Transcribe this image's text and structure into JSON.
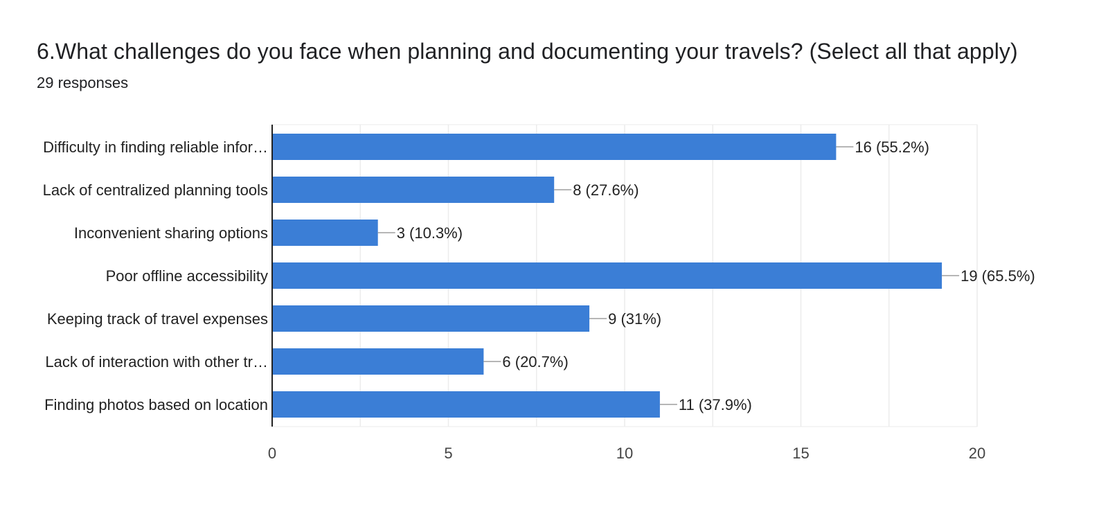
{
  "question": {
    "title": "6.What challenges do you face when planning and documenting your travels? (Select all that apply)",
    "responses": "29 responses"
  },
  "chart_data": {
    "type": "bar",
    "orientation": "horizontal",
    "categories": [
      "Difficulty in finding reliable infor…",
      "Lack of centralized planning tools",
      "Inconvenient sharing options",
      "Poor offline accessibility",
      "Keeping track of travel expenses",
      "Lack of interaction with other tr…",
      "Finding photos based on location"
    ],
    "values": [
      16,
      8,
      3,
      19,
      9,
      6,
      11
    ],
    "data_labels": [
      "16 (55.2%)",
      "8 (27.6%)",
      "3 (10.3%)",
      "19 (65.5%)",
      "9 (31%)",
      "6 (20.7%)",
      "11 (37.9%)"
    ],
    "xlim": [
      0,
      20
    ],
    "xticks": [
      "0",
      "5",
      "10",
      "15",
      "20"
    ],
    "xtick_values": [
      0,
      5,
      10,
      15,
      20
    ],
    "grid": true,
    "bar_color": "#3b7ed6"
  }
}
